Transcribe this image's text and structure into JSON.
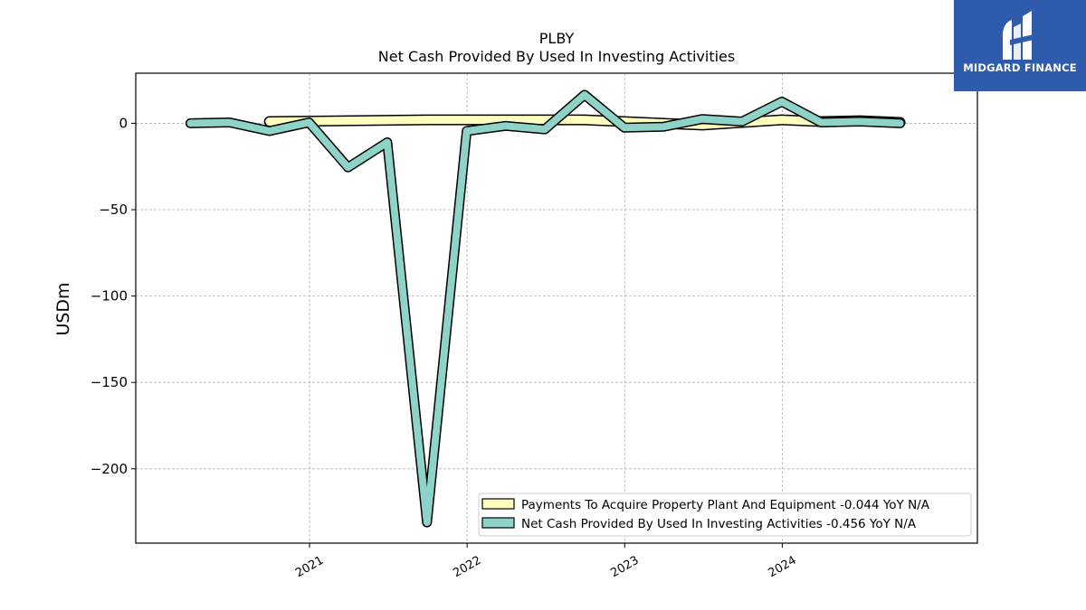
{
  "brand": {
    "name": "MIDGARD FINANCE",
    "logo_icon": "midgard-logo-icon",
    "color": "#2f5bad"
  },
  "chart_data": {
    "type": "line",
    "title": "PLBY",
    "subtitle": "Net Cash Provided By Used In Investing Activities",
    "xlabel": "",
    "ylabel": "USDm",
    "ylim": [
      -243,
      29
    ],
    "yticks": [
      0,
      -50,
      -100,
      -150,
      -200
    ],
    "ytick_labels": [
      "0",
      "−50",
      "−100",
      "−150",
      "−200"
    ],
    "xticks": [
      "2021",
      "2022",
      "2023",
      "2024"
    ],
    "grid": true,
    "legend_position": "lower-right",
    "series": [
      {
        "name": "Payments To Acquire Property Plant And Equipment  -0.044 YoY N/A",
        "color": "#ffffbf",
        "x": [
          "2020-09-30",
          "2021-09-30",
          "2022-09-30",
          "2023-06-30",
          "2023-09-30",
          "2023-12-31",
          "2024-03-31",
          "2024-06-30",
          "2024-09-30"
        ],
        "values": [
          1,
          2,
          2,
          -1,
          0.5,
          2,
          1,
          1.5,
          0.5
        ]
      },
      {
        "name": "Net Cash Provided By Used In Investing Activities  -0.456 YoY N/A",
        "color": "#8dd3c7",
        "x": [
          "2020-03-31",
          "2020-06-30",
          "2020-09-30",
          "2020-12-31",
          "2021-03-31",
          "2021-06-30",
          "2021-09-30",
          "2021-12-31",
          "2022-03-31",
          "2022-06-30",
          "2022-09-30",
          "2022-12-31",
          "2023-03-31",
          "2023-06-30",
          "2023-09-30",
          "2023-12-31",
          "2024-03-31",
          "2024-06-30",
          "2024-09-30"
        ],
        "values": [
          0,
          0.5,
          -4.5,
          0.5,
          -25.5,
          -11,
          -231,
          -4.5,
          -1.5,
          -3.5,
          16.5,
          -2.5,
          -2,
          2.5,
          1,
          12.5,
          0.5,
          1,
          0
        ]
      }
    ]
  }
}
